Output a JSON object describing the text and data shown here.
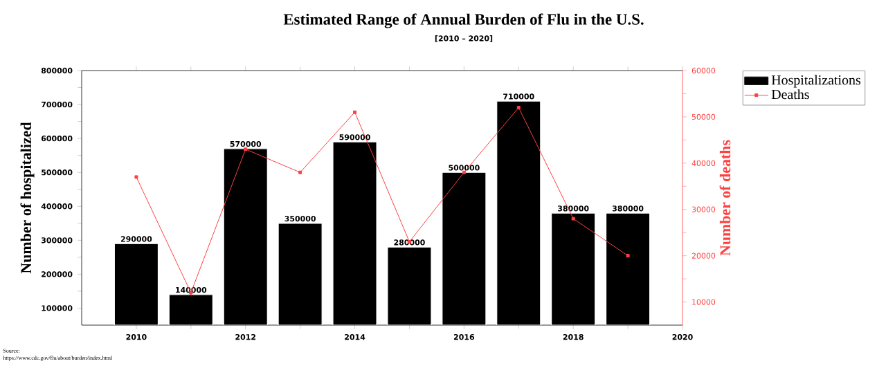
{
  "chart_data": {
    "type": "bar",
    "title": "Estimated Range of Annual Burden of Flu in the U.S.",
    "subtitle": "[2010 –  2020]",
    "ylabel": "Number of hospitalized",
    "y2label": "Number of deaths",
    "x": [
      2010,
      2011,
      2012,
      2013,
      2014,
      2015,
      2016,
      2017,
      2018,
      2019
    ],
    "series": [
      {
        "name": "Hospitalizations",
        "color": "#000000",
        "values": [
          290000,
          140000,
          570000,
          350000,
          590000,
          280000,
          500000,
          710000,
          380000,
          380000
        ],
        "value_labels": [
          "290000",
          "140000",
          "570000",
          "350000",
          "590000",
          "280000",
          "500000",
          "710000",
          "380000",
          "380000"
        ]
      },
      {
        "name": "Deaths",
        "type": "line",
        "axis": "y2",
        "color": "#ff4040",
        "values": [
          37000,
          12000,
          43000,
          38000,
          51000,
          23000,
          38000,
          52000,
          28000,
          20000
        ]
      }
    ],
    "marker": "square",
    "line_style": "solid",
    "legend": "top right",
    "xlim": [
      2009,
      2020
    ],
    "xticks": [
      2010,
      2012,
      2014,
      2016,
      2018,
      2020
    ],
    "ylim": [
      50000,
      800000
    ],
    "yticks": [
      100000,
      200000,
      300000,
      400000,
      500000,
      600000,
      700000,
      800000
    ],
    "y2lim": [
      5000,
      60000
    ],
    "y2ticks": [
      10000,
      20000,
      30000,
      40000,
      50000,
      60000
    ],
    "annotations": [
      "Source:",
      "https://www.cdc.gov/flu/about/burden/index.html"
    ]
  }
}
